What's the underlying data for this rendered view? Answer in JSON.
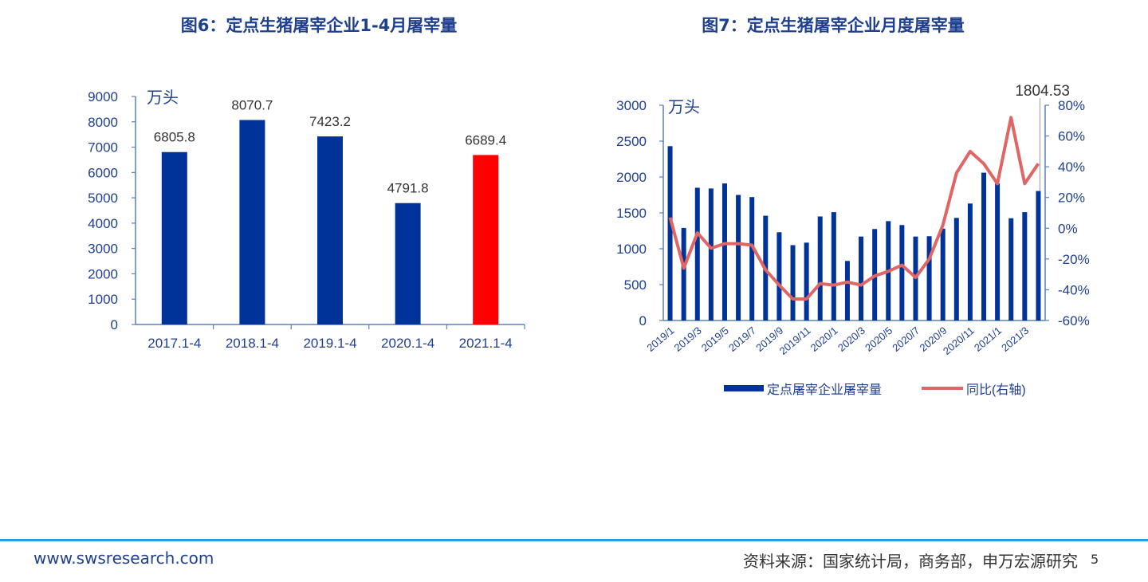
{
  "chart_data": [
    {
      "type": "bar",
      "title": "图6：定点生猪屠宰企业1-4月屠宰量",
      "unit_label": "万头",
      "categories": [
        "2017.1-4",
        "2018.1-4",
        "2019.1-4",
        "2020.1-4",
        "2021.1-4"
      ],
      "values": [
        6805.8,
        8070.7,
        7423.2,
        4791.8,
        6689.4
      ],
      "data_labels": [
        "6805.8",
        "8070.7",
        "7423.2",
        "4791.8",
        "6689.4"
      ],
      "ylim": [
        0,
        9000
      ],
      "yticks": [
        "0",
        "1000",
        "2000",
        "3000",
        "4000",
        "5000",
        "6000",
        "7000",
        "8000",
        "9000"
      ],
      "colors": [
        "#003399",
        "#003399",
        "#003399",
        "#003399",
        "#ff0000"
      ]
    },
    {
      "type": "bar+line",
      "title": "图7：定点生猪屠宰企业月度屠宰量",
      "unit_label": "万头",
      "x": [
        "2019/1",
        "2019/2",
        "2019/3",
        "2019/4",
        "2019/5",
        "2019/6",
        "2019/7",
        "2019/8",
        "2019/9",
        "2019/10",
        "2019/11",
        "2019/12",
        "2020/1",
        "2020/2",
        "2020/3",
        "2020/4",
        "2020/5",
        "2020/6",
        "2020/7",
        "2020/8",
        "2020/9",
        "2020/10",
        "2020/11",
        "2020/12",
        "2021/1",
        "2021/2",
        "2021/3",
        "2021/4"
      ],
      "xtick_labels": [
        "2019/1",
        "2019/3",
        "2019/5",
        "2019/7",
        "2019/9",
        "2019/11",
        "2020/1",
        "2020/3",
        "2020/5",
        "2020/7",
        "2020/9",
        "2020/11",
        "2021/1",
        "2021/3"
      ],
      "series": [
        {
          "name": "定点屠宰企业屠宰量",
          "type": "bar",
          "axis": "left",
          "color": "#003399",
          "values": [
            2430,
            1290,
            1850,
            1840,
            1910,
            1750,
            1720,
            1460,
            1230,
            1050,
            1085,
            1450,
            1510,
            830,
            1170,
            1275,
            1385,
            1330,
            1170,
            1175,
            1280,
            1430,
            1630,
            2060,
            1910,
            1425,
            1510,
            1804.53
          ]
        },
        {
          "name": "同比(右轴)",
          "type": "line",
          "axis": "right",
          "color": "#e06666",
          "values": [
            7,
            -26,
            -3,
            -13,
            -10,
            -10,
            -11,
            -27,
            -37,
            -46,
            -46,
            -36,
            -37,
            -35,
            -37,
            -31,
            -28,
            -24,
            -32,
            -20,
            2,
            36,
            50,
            42,
            29,
            72,
            29,
            42
          ]
        }
      ],
      "ylim_left": [
        0,
        3000
      ],
      "yticks_left": [
        "0",
        "500",
        "1000",
        "1500",
        "2000",
        "2500",
        "3000"
      ],
      "ylim_right": [
        -60,
        80
      ],
      "yticks_right": [
        "-60%",
        "-40%",
        "-20%",
        "0%",
        "20%",
        "40%",
        "60%",
        "80%"
      ],
      "annotation": "1804.53",
      "legend_position": "bottom"
    }
  ],
  "footer": {
    "website": "www.swsresearch.com",
    "source": "资料来源：国家统计局，商务部，申万宏源研究",
    "page_number": "5"
  }
}
